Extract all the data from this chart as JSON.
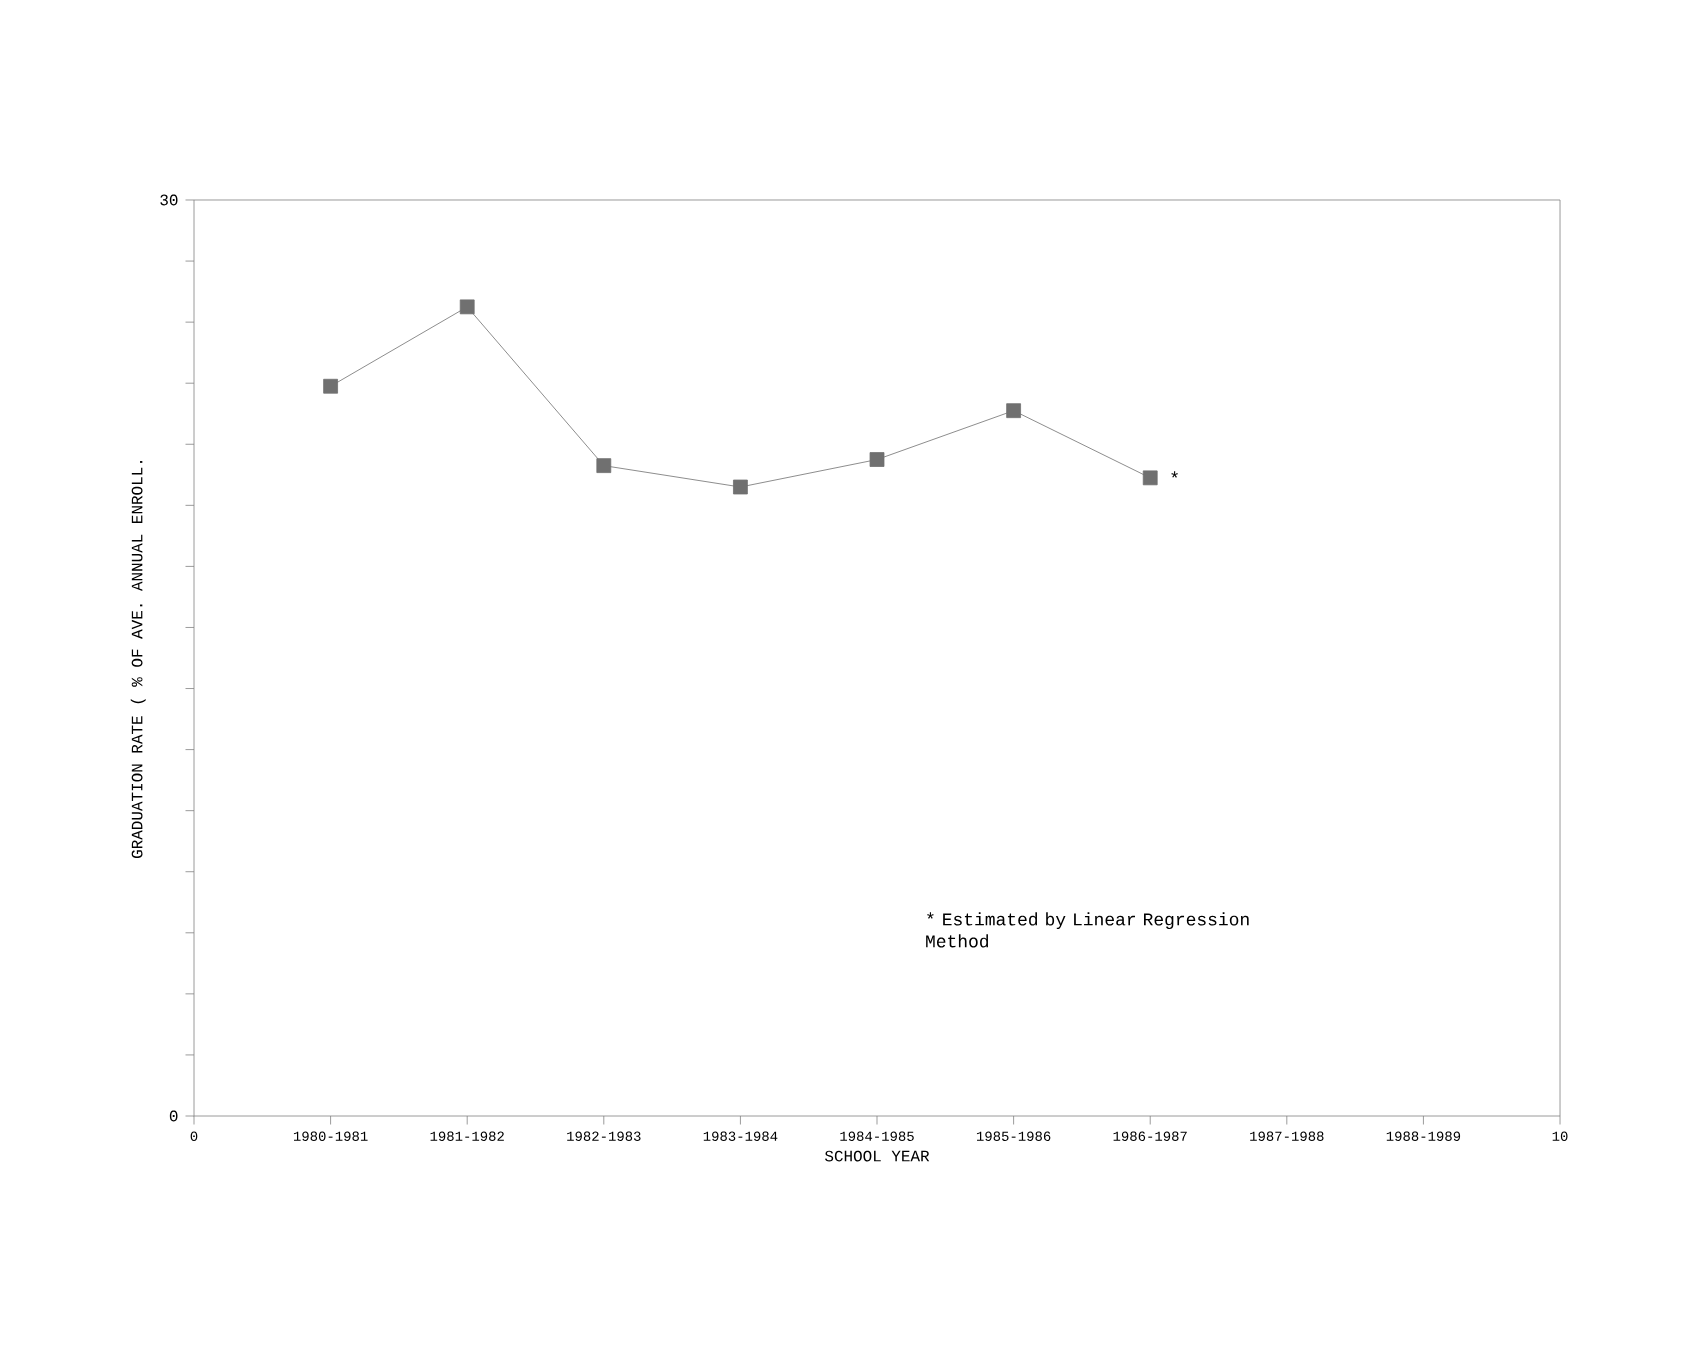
{
  "chart_data": {
    "type": "line",
    "x": [
      1,
      2,
      3,
      4,
      5,
      6,
      7
    ],
    "values": [
      23.9,
      26.5,
      21.3,
      20.6,
      21.5,
      23.1,
      20.9
    ],
    "color": "#707070",
    "marker": "square",
    "line_style": "solid",
    "xlim": [
      0,
      10
    ],
    "ylim": [
      0,
      30
    ],
    "xticks": [
      0,
      {
        "value": 1,
        "label": "1980-1981"
      },
      {
        "value": 2,
        "label": "1981-1982"
      },
      {
        "value": 3,
        "label": "1982-1983"
      },
      {
        "value": 4,
        "label": "1983-1984"
      },
      {
        "value": 5,
        "label": "1984-1985"
      },
      {
        "value": 6,
        "label": "1985-1986"
      },
      {
        "value": 7,
        "label": "1986-1987"
      },
      {
        "value": 8,
        "label": "1987-1988"
      },
      {
        "value": 9,
        "label": "1988-1989"
      },
      10
    ],
    "yticks": [
      0,
      {
        "value": 2,
        "label": null
      },
      {
        "value": 4,
        "label": null
      },
      {
        "value": 6,
        "label": null
      },
      {
        "value": 8,
        "label": null
      },
      {
        "value": 10,
        "label": null
      },
      {
        "value": 12,
        "label": null
      },
      {
        "value": 14,
        "label": null
      },
      {
        "value": 16,
        "label": null
      },
      {
        "value": 18,
        "label": null
      },
      {
        "value": 20,
        "label": null
      },
      {
        "value": 22,
        "label": null
      },
      {
        "value": 24,
        "label": null
      },
      {
        "value": 26,
        "label": null
      },
      {
        "value": 28,
        "label": null
      },
      30
    ],
    "xlabel": "SCHOOL YEAR",
    "ylabel": "GRADUATION RATE ( % OF AVE. ANNUAL ENROLL.",
    "annotations": [
      {
        "text": "*",
        "x": 7,
        "y": 20.9
      },
      "* Estimated by Linear Regression Method"
    ]
  }
}
